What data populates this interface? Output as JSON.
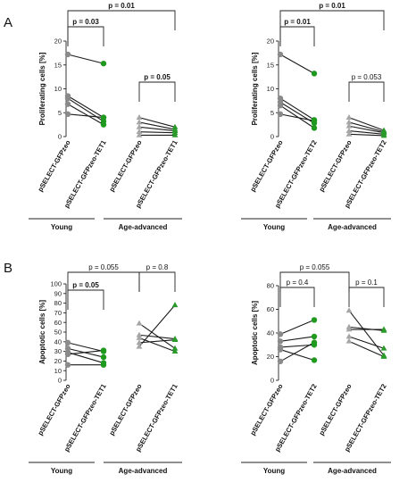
{
  "panels": [
    {
      "letter": "A"
    },
    {
      "letter": "B"
    }
  ],
  "colors": {
    "gray_circle": "#8a8a8a",
    "green_circle": "#1f9a1f",
    "gray_triangle": "#a6a6a6",
    "green_triangle": "#2a9a2a",
    "line": "#1a1a1a"
  },
  "chart_data": [
    {
      "type": "scatter",
      "panel": "A",
      "ylabel": "Proliferating cells [%]",
      "ylim": [
        0,
        20
      ],
      "yticks": [
        0,
        5,
        10,
        15,
        20
      ],
      "categories": [
        "pSELECT-GFPzeo",
        "pSELECT-GFPzeo-TET1",
        "pSELECT-GFPzeo",
        "pSELECT-GFPzeo-TET1"
      ],
      "groups": [
        "Young",
        "Age-advanced"
      ],
      "series": [
        {
          "group": "Young",
          "marker": "circle",
          "pairs": [
            [
              17.2,
              15.3
            ],
            [
              8.5,
              4.0
            ],
            [
              8.0,
              3.2
            ],
            [
              6.8,
              2.5
            ],
            [
              4.7,
              4.0
            ]
          ]
        },
        {
          "group": "Age-advanced",
          "marker": "triangle",
          "pairs": [
            [
              4.0,
              2.0
            ],
            [
              3.0,
              1.5
            ],
            [
              2.0,
              1.2
            ],
            [
              1.0,
              0.8
            ],
            [
              0.3,
              0.3
            ]
          ]
        }
      ],
      "annotations": [
        {
          "label": "p = 0.01",
          "between": [
            0,
            3
          ],
          "bold": true
        },
        {
          "label": "p = 0.03",
          "between": [
            0,
            1
          ],
          "bold": true
        },
        {
          "label": "p = 0.05",
          "between": [
            2,
            3
          ],
          "bold": true
        }
      ]
    },
    {
      "type": "scatter",
      "panel": "A",
      "ylabel": "Proliferating cells [%]",
      "ylim": [
        0,
        20
      ],
      "yticks": [
        0,
        5,
        10,
        15,
        20
      ],
      "categories": [
        "pSELECT-GFPzeo",
        "pSELECT-GFPzeo-TET2",
        "pSELECT-GFPzeo",
        "pSELECT-GFPzeo-TET2"
      ],
      "groups": [
        "Young",
        "Age-advanced"
      ],
      "series": [
        {
          "group": "Young",
          "marker": "circle",
          "pairs": [
            [
              17.2,
              13.2
            ],
            [
              8.0,
              3.5
            ],
            [
              7.2,
              2.8
            ],
            [
              6.5,
              1.8
            ],
            [
              4.7,
              3.3
            ]
          ]
        },
        {
          "group": "Age-advanced",
          "marker": "triangle",
          "pairs": [
            [
              4.0,
              1.3
            ],
            [
              3.0,
              1.0
            ],
            [
              2.2,
              0.8
            ],
            [
              1.2,
              0.5
            ],
            [
              0.5,
              0.2
            ]
          ]
        }
      ],
      "annotations": [
        {
          "label": "p = 0.01",
          "between": [
            0,
            3
          ],
          "bold": true
        },
        {
          "label": "p = 0.01",
          "between": [
            0,
            1
          ],
          "bold": true
        },
        {
          "label": "p = 0.053",
          "between": [
            2,
            3
          ],
          "bold": false
        }
      ]
    },
    {
      "type": "scatter",
      "panel": "B",
      "ylabel": "Apoptotic cells [%]",
      "ylim": [
        0,
        100
      ],
      "yticks": [
        0,
        10,
        20,
        30,
        40,
        50,
        60,
        70,
        80,
        90,
        100
      ],
      "categories": [
        "pSELECT-GFPzeo",
        "pSELECT-GFPzeo-TET1",
        "pSELECT-GFPzeo",
        "pSELECT-GFPzeo-TET1"
      ],
      "groups": [
        "Young",
        "Age-advanced"
      ],
      "series": [
        {
          "group": "Young",
          "marker": "circle",
          "pairs": [
            [
              39,
              30
            ],
            [
              33,
              24
            ],
            [
              29,
              18
            ],
            [
              27,
              31
            ],
            [
              16,
              16
            ]
          ]
        },
        {
          "group": "Age-advanced",
          "marker": "triangle",
          "pairs": [
            [
              59,
              33
            ],
            [
              47,
              43
            ],
            [
              44,
              30
            ],
            [
              39,
              42
            ],
            [
              35,
              78
            ]
          ]
        }
      ],
      "annotations": [
        {
          "label": "p = 0.055",
          "between": [
            0,
            2
          ],
          "bold": false
        },
        {
          "label": "p = 0.8",
          "between": [
            2,
            3
          ],
          "bold": false
        },
        {
          "label": "p = 0.05",
          "between": [
            0,
            1
          ],
          "bold": true
        }
      ]
    },
    {
      "type": "scatter",
      "panel": "B",
      "ylabel": "Apoptotic cells [%]",
      "ylim": [
        0,
        80
      ],
      "yticks": [
        0,
        20,
        40,
        60,
        80
      ],
      "categories": [
        "pSELECT-GFPzeo",
        "pSELECT-GFPzeo-TET2",
        "pSELECT-GFPzeo",
        "pSELECT-GFPzeo-TET2"
      ],
      "groups": [
        "Young",
        "Age-advanced"
      ],
      "series": [
        {
          "group": "Young",
          "marker": "circle",
          "pairs": [
            [
              39,
              51
            ],
            [
              33,
              37
            ],
            [
              28,
              30
            ],
            [
              26,
              17
            ],
            [
              16,
              32
            ]
          ]
        },
        {
          "group": "Age-advanced",
          "marker": "triangle",
          "pairs": [
            [
              59,
              21
            ],
            [
              45,
              42
            ],
            [
              43,
              43
            ],
            [
              37,
              27
            ],
            [
              33,
              20
            ]
          ]
        }
      ],
      "annotations": [
        {
          "label": "p = 0.055",
          "between": [
            0,
            2
          ],
          "bold": false
        },
        {
          "label": "p = 0.4",
          "between": [
            0,
            1
          ],
          "bold": false
        },
        {
          "label": "p = 0.1",
          "between": [
            2,
            3
          ],
          "bold": false
        }
      ]
    }
  ]
}
